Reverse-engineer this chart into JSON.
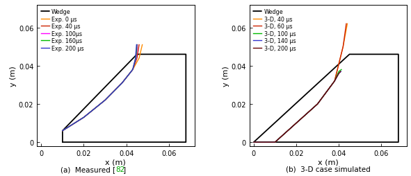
{
  "xlim": [
    -0.002,
    0.072
  ],
  "ylim": [
    -0.002,
    0.072
  ],
  "xlabel": "x (m)",
  "ylabel": "y (m)",
  "xticks": [
    0.0,
    0.02,
    0.04,
    0.06
  ],
  "yticks": [
    0.0,
    0.02,
    0.04,
    0.06
  ],
  "xticklabels": [
    "0",
    "0.02",
    "0.04",
    "0.06"
  ],
  "yticklabels": [
    "0",
    "0.02",
    "0.04",
    "0.06"
  ],
  "wedge_left_x": [
    0.01,
    0.01,
    0.045,
    0.06,
    0.068,
    0.068,
    0.01
  ],
  "wedge_left_y": [
    0.0,
    0.006,
    0.046,
    0.046,
    0.046,
    0.0,
    0.0
  ],
  "wedge_right_x": [
    0.0,
    0.0,
    0.045,
    0.06,
    0.068,
    0.068,
    0.0
  ],
  "wedge_right_y": [
    0.0,
    0.0,
    0.046,
    0.046,
    0.046,
    0.0,
    0.0
  ],
  "exp_colors": [
    "#FF8C00",
    "#CC2200",
    "#FF00FF",
    "#00BB00",
    "#3333CC"
  ],
  "exp_labels": [
    "Exp. 0 μs",
    "Exp. 40 μs",
    "Exp. 100μs",
    "Exp. 160μs",
    "Exp. 200 μs"
  ],
  "exp_curves_x": [
    [
      0.01,
      0.02,
      0.03,
      0.038,
      0.043,
      0.046,
      0.0475
    ],
    [
      0.01,
      0.02,
      0.03,
      0.038,
      0.043,
      0.045,
      0.046
    ],
    [
      0.01,
      0.02,
      0.03,
      0.038,
      0.043,
      0.0447,
      0.0452
    ],
    [
      0.01,
      0.02,
      0.03,
      0.038,
      0.043,
      0.0445,
      0.045
    ],
    [
      0.01,
      0.02,
      0.03,
      0.038,
      0.043,
      0.0443,
      0.0448
    ]
  ],
  "exp_curves_y": [
    [
      0.006,
      0.013,
      0.022,
      0.031,
      0.038,
      0.044,
      0.051
    ],
    [
      0.006,
      0.013,
      0.022,
      0.031,
      0.038,
      0.044,
      0.051
    ],
    [
      0.006,
      0.013,
      0.022,
      0.031,
      0.038,
      0.044,
      0.051
    ],
    [
      0.006,
      0.013,
      0.022,
      0.031,
      0.038,
      0.044,
      0.051
    ],
    [
      0.006,
      0.013,
      0.022,
      0.031,
      0.038,
      0.044,
      0.051
    ]
  ],
  "sim_colors": [
    "#FF8C00",
    "#CC2200",
    "#00BB00",
    "#3333CC",
    "#660000"
  ],
  "sim_labels": [
    "3-D, 40 μs",
    "3-D, 60 μs",
    "3-D, 100 μs",
    "3-D, 140 μs",
    "3-D, 200 μs"
  ],
  "sim_curves_x": [
    [
      0.0,
      0.01,
      0.02,
      0.03,
      0.038,
      0.042,
      0.044
    ],
    [
      0.0,
      0.01,
      0.02,
      0.03,
      0.038,
      0.042,
      0.0435
    ],
    [
      0.0,
      0.01,
      0.02,
      0.03,
      0.038,
      0.04,
      0.0412
    ],
    [
      0.0,
      0.01,
      0.02,
      0.03,
      0.038,
      0.04,
      0.041
    ],
    [
      0.0,
      0.01,
      0.02,
      0.03,
      0.038,
      0.04,
      0.0408
    ]
  ],
  "sim_curves_y": [
    [
      0.0,
      0.0,
      0.01,
      0.02,
      0.032,
      0.05,
      0.062
    ],
    [
      0.0,
      0.0,
      0.01,
      0.02,
      0.032,
      0.05,
      0.062
    ],
    [
      0.0,
      0.0,
      0.01,
      0.02,
      0.032,
      0.037,
      0.038
    ],
    [
      0.0,
      0.0,
      0.01,
      0.02,
      0.032,
      0.036,
      0.037
    ],
    [
      0.0,
      0.0,
      0.01,
      0.02,
      0.032,
      0.036,
      0.037
    ]
  ],
  "caption_left": "(a)  Measured [82]",
  "caption_right": "(b)  3-D case simulated",
  "ref_color": "#00AA00",
  "background": "#ffffff",
  "linewidth_wedge": 1.3,
  "linewidth_curve": 1.0
}
